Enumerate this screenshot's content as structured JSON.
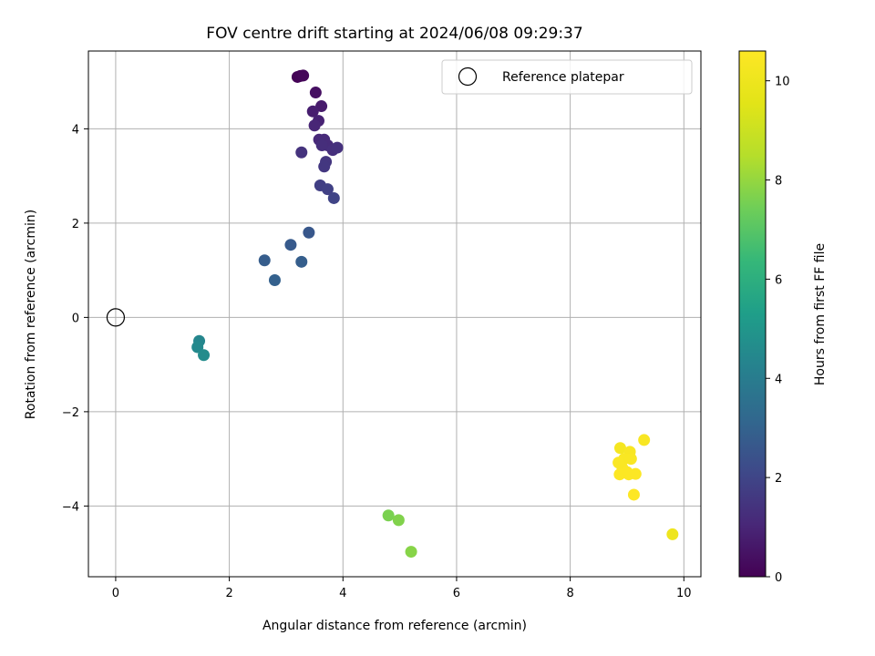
{
  "chart_data": {
    "type": "scatter",
    "title": "FOV centre drift starting at 2024/06/08 09:29:37",
    "xlabel": "Angular distance from reference (arcmin)",
    "ylabel": "Rotation from reference (arcmin)",
    "xlim": [
      -0.48,
      10.3
    ],
    "ylim": [
      -5.5,
      5.65
    ],
    "xticks": [
      0,
      2,
      4,
      6,
      8,
      10
    ],
    "yticks": [
      -4,
      -2,
      0,
      2,
      4
    ],
    "xtick_labels": [
      "0",
      "2",
      "4",
      "6",
      "8",
      "10"
    ],
    "ytick_labels": [
      "−4",
      "−2",
      "0",
      "2",
      "4"
    ],
    "grid": true,
    "legend": {
      "position": "top-right",
      "entries": [
        {
          "label": "Reference platepar",
          "marker": "open-circle",
          "color": "#000000"
        }
      ]
    },
    "reference_point": {
      "x": 0,
      "y": 0
    },
    "colorbar": {
      "label": "Hours from first FF file",
      "colormap": "viridis",
      "range": [
        0,
        10.6
      ],
      "ticks": [
        0,
        2,
        4,
        6,
        8,
        10
      ],
      "tick_labels": [
        "0",
        "2",
        "4",
        "6",
        "8",
        "10"
      ]
    },
    "points": [
      {
        "x": 3.2,
        "y": 5.1,
        "t": 0.05
      },
      {
        "x": 3.25,
        "y": 5.12,
        "t": 0.1
      },
      {
        "x": 3.3,
        "y": 5.13,
        "t": 0.15
      },
      {
        "x": 3.52,
        "y": 4.77,
        "t": 0.4
      },
      {
        "x": 3.62,
        "y": 4.48,
        "t": 0.7
      },
      {
        "x": 3.47,
        "y": 4.37,
        "t": 0.8
      },
      {
        "x": 3.57,
        "y": 4.17,
        "t": 0.9
      },
      {
        "x": 3.5,
        "y": 4.07,
        "t": 1.0
      },
      {
        "x": 3.58,
        "y": 3.77,
        "t": 1.1
      },
      {
        "x": 3.67,
        "y": 3.77,
        "t": 1.15
      },
      {
        "x": 3.73,
        "y": 3.65,
        "t": 1.2
      },
      {
        "x": 3.63,
        "y": 3.65,
        "t": 1.25
      },
      {
        "x": 3.82,
        "y": 3.55,
        "t": 1.3
      },
      {
        "x": 3.9,
        "y": 3.6,
        "t": 1.35
      },
      {
        "x": 3.27,
        "y": 3.5,
        "t": 1.4
      },
      {
        "x": 3.7,
        "y": 3.3,
        "t": 1.5
      },
      {
        "x": 3.67,
        "y": 3.2,
        "t": 1.55
      },
      {
        "x": 3.6,
        "y": 2.8,
        "t": 1.8
      },
      {
        "x": 3.73,
        "y": 2.72,
        "t": 1.85
      },
      {
        "x": 3.84,
        "y": 2.53,
        "t": 1.95
      },
      {
        "x": 3.4,
        "y": 1.8,
        "t": 2.6
      },
      {
        "x": 3.08,
        "y": 1.54,
        "t": 2.7
      },
      {
        "x": 2.62,
        "y": 1.21,
        "t": 2.8
      },
      {
        "x": 3.27,
        "y": 1.18,
        "t": 2.85
      },
      {
        "x": 2.8,
        "y": 0.79,
        "t": 2.95
      },
      {
        "x": 1.47,
        "y": -0.5,
        "t": 4.4
      },
      {
        "x": 1.44,
        "y": -0.63,
        "t": 4.5
      },
      {
        "x": 1.55,
        "y": -0.8,
        "t": 4.6
      },
      {
        "x": 4.8,
        "y": -4.2,
        "t": 7.6
      },
      {
        "x": 4.98,
        "y": -4.3,
        "t": 7.7
      },
      {
        "x": 5.2,
        "y": -4.97,
        "t": 7.8
      },
      {
        "x": 8.88,
        "y": -2.77,
        "t": 10.3
      },
      {
        "x": 9.3,
        "y": -2.6,
        "t": 10.4
      },
      {
        "x": 9.05,
        "y": -2.85,
        "t": 10.4
      },
      {
        "x": 8.95,
        "y": -3.0,
        "t": 10.45
      },
      {
        "x": 9.07,
        "y": -3.0,
        "t": 10.45
      },
      {
        "x": 8.85,
        "y": -3.08,
        "t": 10.5
      },
      {
        "x": 8.92,
        "y": -3.2,
        "t": 10.5
      },
      {
        "x": 9.0,
        "y": -3.28,
        "t": 10.55
      },
      {
        "x": 8.87,
        "y": -3.33,
        "t": 10.55
      },
      {
        "x": 9.03,
        "y": -3.33,
        "t": 10.55
      },
      {
        "x": 9.15,
        "y": -3.32,
        "t": 10.55
      },
      {
        "x": 9.12,
        "y": -3.76,
        "t": 10.6
      },
      {
        "x": 9.8,
        "y": -4.6,
        "t": 10.0
      }
    ]
  }
}
